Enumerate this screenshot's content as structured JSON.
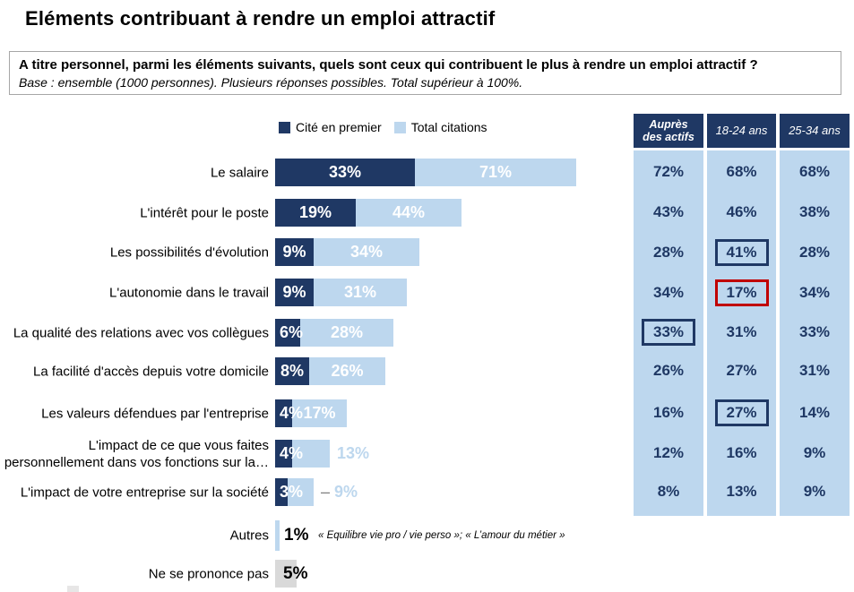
{
  "title": "Eléments contribuant à rendre un emploi attractif",
  "question": {
    "text": "A titre personnel, parmi les éléments suivants, quels sont ceux qui contribuent le plus à rendre un emploi attractif ?",
    "base": "Base : ensemble (1000 personnes). Plusieurs réponses possibles. Total supérieur à 100%."
  },
  "legend": {
    "items": [
      {
        "label": "Cité en premier",
        "color": "#1F3864"
      },
      {
        "label": "Total citations",
        "color": "#BDD7EE"
      }
    ]
  },
  "colors": {
    "navy": "#1F3864",
    "light_blue": "#BDD7EE",
    "red": "#C00000",
    "gray": "#D9D9D9",
    "table_text": "#1F3864"
  },
  "chart_data": {
    "type": "bar",
    "orientation": "horizontal",
    "title": "Eléments contribuant à rendre un emploi attractif",
    "xlabel": "",
    "ylabel": "",
    "xlim": [
      0,
      100
    ],
    "value_suffix": "%",
    "legend_position": "top",
    "grid": false,
    "categories": [
      "Le salaire",
      "L'intérêt pour le poste",
      "Les possibilités d'évolution",
      "L'autonomie dans le travail",
      "La qualité des relations avec vos collègues",
      "La facilité d'accès depuis votre domicile",
      "Les valeurs défendues par l'entreprise",
      "L'impact de ce que vous faites personnellement dans vos fonctions sur la…",
      "L'impact de votre entreprise sur la société",
      "Autres",
      "Ne se prononce pas"
    ],
    "series": [
      {
        "name": "Cité en premier",
        "color": "#1F3864",
        "values": [
          33,
          19,
          9,
          9,
          6,
          8,
          4,
          4,
          3,
          null,
          null
        ]
      },
      {
        "name": "Total citations",
        "color": "#BDD7EE",
        "values": [
          71,
          44,
          34,
          31,
          28,
          26,
          17,
          13,
          9,
          1,
          null
        ]
      },
      {
        "name": "Ne se prononce pas",
        "color": "#D9D9D9",
        "values": [
          null,
          null,
          null,
          null,
          null,
          null,
          null,
          null,
          null,
          null,
          5
        ]
      }
    ],
    "annotations": [
      {
        "category": "Autres",
        "text": "« Equilibre vie pro / vie perso »; « L’amour du métier »"
      }
    ]
  },
  "table": {
    "headers": [
      "Auprès des actifs",
      "18-24 ans",
      "25-34 ans"
    ],
    "rows": [
      [
        "72%",
        "68%",
        "68%"
      ],
      [
        "43%",
        "46%",
        "38%"
      ],
      [
        "28%",
        "41%",
        "28%"
      ],
      [
        "34%",
        "17%",
        "34%"
      ],
      [
        "33%",
        "31%",
        "33%"
      ],
      [
        "26%",
        "27%",
        "31%"
      ],
      [
        "16%",
        "27%",
        "14%"
      ],
      [
        "12%",
        "16%",
        "9%"
      ],
      [
        "8%",
        "13%",
        "9%"
      ]
    ],
    "highlights": [
      {
        "row": 2,
        "col": 1,
        "color": "#1F3864"
      },
      {
        "row": 3,
        "col": 1,
        "color": "#C00000"
      },
      {
        "row": 4,
        "col": 0,
        "color": "#1F3864"
      },
      {
        "row": 6,
        "col": 1,
        "color": "#1F3864"
      }
    ]
  }
}
